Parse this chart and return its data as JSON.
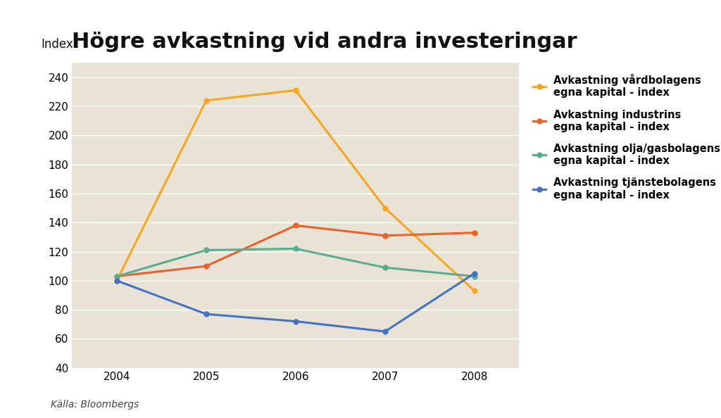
{
  "title": "Högre avkastning vid andra investeringar",
  "ylabel": "Index",
  "source": "Källa: Bloombergs",
  "years": [
    2004,
    2005,
    2006,
    2007,
    2008
  ],
  "series": [
    {
      "label": "Avkastning vårdbolagens\negna kapital - index",
      "color": "#F5A623",
      "values": [
        100,
        224,
        231,
        150,
        93
      ]
    },
    {
      "label": "Avkastning industrins\negna kapital - index",
      "color": "#E8622A",
      "values": [
        103,
        110,
        138,
        131,
        133
      ]
    },
    {
      "label": "Avkastning olja/gasbolagens\negna kapital - index",
      "color": "#5BAD8F",
      "values": [
        103,
        121,
        122,
        109,
        103
      ]
    },
    {
      "label": "Avkastning tjänstebolagens\negna kapital - index",
      "color": "#4472C4",
      "values": [
        100,
        77,
        72,
        65,
        105
      ]
    }
  ],
  "ylim": [
    40,
    250
  ],
  "yticks": [
    40,
    60,
    80,
    100,
    120,
    140,
    160,
    180,
    200,
    220,
    240
  ],
  "fig_bg_color": "#FFFFFF",
  "plot_bg_color": "#E8E3D5",
  "title_fontsize": 22,
  "tick_fontsize": 11,
  "legend_fontsize": 10.5,
  "source_fontsize": 10
}
